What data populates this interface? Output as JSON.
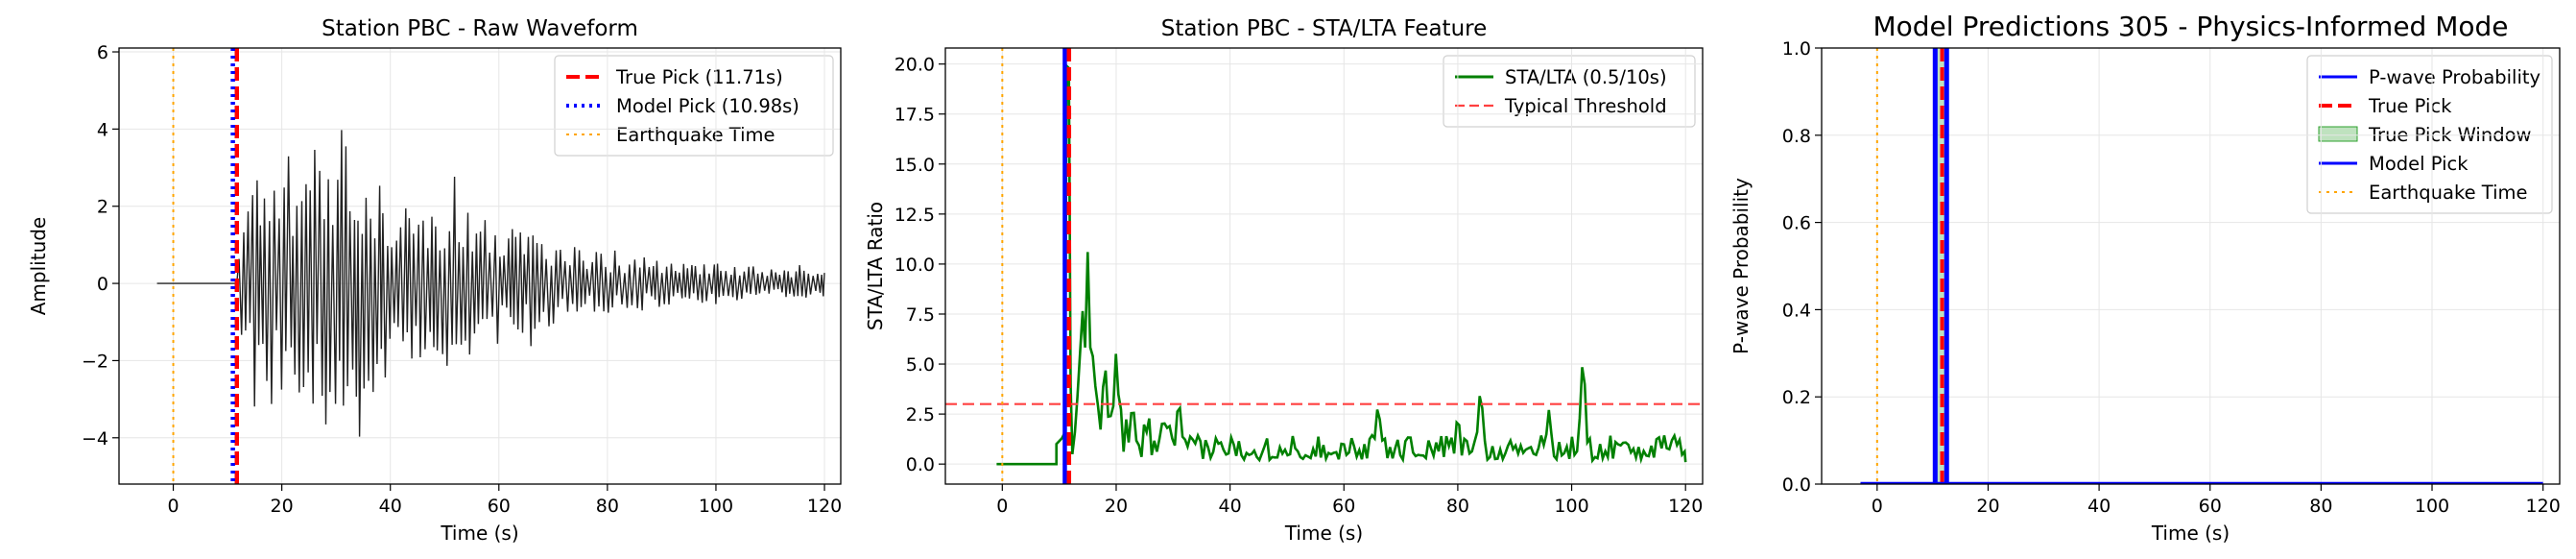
{
  "chart_data": [
    {
      "type": "line",
      "title": "Station PBC - Raw Waveform",
      "xlabel": "Time (s)",
      "ylabel": "Amplitude",
      "xlim": [
        -10,
        123
      ],
      "ylim": [
        -5.2,
        6.1
      ],
      "xticks": [
        0,
        20,
        40,
        60,
        80,
        100,
        120
      ],
      "yticks": [
        -4,
        -2,
        0,
        2,
        4,
        6
      ],
      "ytick_labels": [
        "−4",
        "−2",
        "0",
        "2",
        "4",
        "6"
      ],
      "grid": true,
      "legend_position": "top-right",
      "series": [
        {
          "name": "True Pick (11.71s)",
          "kind": "vline",
          "x": 11.71,
          "color": "#ff0000",
          "style": "dashed"
        },
        {
          "name": "Model Pick (10.98s)",
          "kind": "vline",
          "x": 10.98,
          "color": "#0000ff",
          "style": "dotted"
        },
        {
          "name": "Earthquake Time",
          "kind": "vline",
          "x": 0,
          "color": "#ffa500",
          "style": "dotted"
        }
      ],
      "waveform": {
        "color": "#222222",
        "x_start": -3,
        "x_end": 120,
        "onset": 11.7,
        "envelope": [
          [
            11.7,
            0.3
          ],
          [
            13,
            2.2
          ],
          [
            18,
            3.3
          ],
          [
            25,
            3.4
          ],
          [
            30,
            4.2
          ],
          [
            35,
            3.2
          ],
          [
            40,
            2.6
          ],
          [
            50,
            2.2
          ],
          [
            60,
            1.6
          ],
          [
            70,
            1.1
          ],
          [
            80,
            0.8
          ],
          [
            100,
            0.5
          ],
          [
            120,
            0.35
          ]
        ]
      }
    },
    {
      "type": "line",
      "title": "Station PBC - STA/LTA Feature",
      "xlabel": "Time (s)",
      "ylabel": "STA/LTA Ratio",
      "xlim": [
        -10,
        123
      ],
      "ylim": [
        -1,
        20.8
      ],
      "xticks": [
        0,
        20,
        40,
        60,
        80,
        100,
        120
      ],
      "yticks": [
        0.0,
        2.5,
        5.0,
        7.5,
        10.0,
        12.5,
        15.0,
        17.5,
        20.0
      ],
      "ytick_labels": [
        "0.0",
        "2.5",
        "5.0",
        "7.5",
        "10.0",
        "12.5",
        "15.0",
        "17.5",
        "20.0"
      ],
      "grid": true,
      "legend_position": "top-right",
      "series": [
        {
          "name": "STA/LTA (0.5/10s)",
          "kind": "line",
          "color": "#008000"
        },
        {
          "name": "Typical Threshold",
          "kind": "hline",
          "y": 3.0,
          "color": "#ff4040",
          "style": "dashed"
        }
      ],
      "vlines": [
        {
          "x": 10.98,
          "color": "#0000ff",
          "style": "solid"
        },
        {
          "x": 11.71,
          "color": "#ff0000",
          "style": "dashed"
        },
        {
          "x": 0,
          "color": "#ffa500",
          "style": "dotted"
        }
      ],
      "stalta_peaks": [
        [
          11.5,
          19.8
        ],
        [
          14,
          8.5
        ],
        [
          15,
          10.6
        ],
        [
          16,
          6.0
        ],
        [
          18,
          5.5
        ],
        [
          20,
          5.8
        ],
        [
          31,
          3.5
        ],
        [
          66,
          3.2
        ],
        [
          80,
          2.6
        ],
        [
          84,
          4.0
        ],
        [
          96,
          2.7
        ],
        [
          102,
          5.7
        ]
      ]
    },
    {
      "type": "line",
      "title": "Model Predictions 305 - Physics-Informed Mode",
      "xlabel": "Time (s)",
      "ylabel": "P-wave Probability",
      "xlim": [
        -10,
        123
      ],
      "ylim": [
        0,
        1
      ],
      "xticks": [
        0,
        20,
        40,
        60,
        80,
        100,
        120
      ],
      "yticks": [
        0.0,
        0.2,
        0.4,
        0.6,
        0.8,
        1.0
      ],
      "ytick_labels": [
        "0.0",
        "0.2",
        "0.4",
        "0.6",
        "0.8",
        "1.0"
      ],
      "grid": true,
      "legend_position": "top-right",
      "series": [
        {
          "name": "P-wave Probability",
          "kind": "line",
          "color": "#0000ff"
        },
        {
          "name": "True Pick",
          "kind": "vline",
          "x": 11.71,
          "color": "#ff0000",
          "style": "dashed"
        },
        {
          "name": "True Pick Window",
          "kind": "span",
          "x0": 10.7,
          "x1": 12.7,
          "color": "#2ca02c"
        },
        {
          "name": "Model Pick",
          "kind": "vline",
          "x": 10.98,
          "color": "#0000ff",
          "style": "solid"
        },
        {
          "name": "Earthquake Time",
          "kind": "vline",
          "x": 0,
          "color": "#ffa500",
          "style": "dotted"
        }
      ]
    }
  ]
}
